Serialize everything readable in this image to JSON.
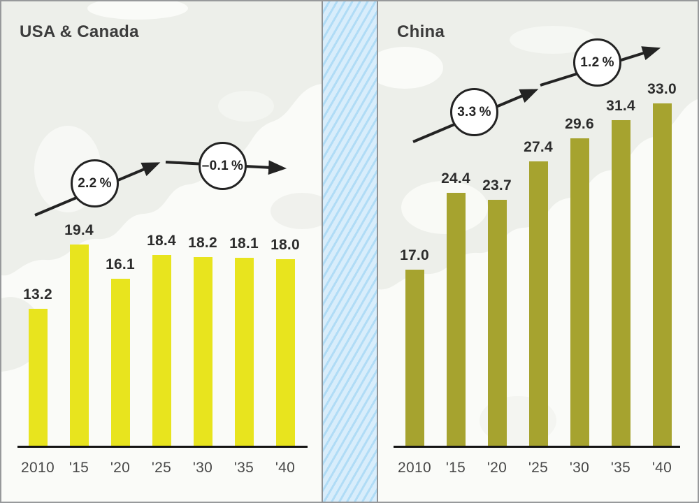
{
  "panels": [
    {
      "title": "USA & Canada",
      "annotations": [
        {
          "text": "2.2 %"
        },
        {
          "text": "–0.1 %"
        }
      ]
    },
    {
      "title": "China",
      "annotations": [
        {
          "text": "3.3 %"
        },
        {
          "text": "1.2 %"
        }
      ]
    }
  ],
  "chart_data": [
    {
      "type": "bar",
      "title": "USA & Canada",
      "categories": [
        "2010",
        "'15",
        "'20",
        "'25",
        "'30",
        "'35",
        "'40"
      ],
      "values": [
        13.2,
        19.4,
        16.1,
        18.4,
        18.2,
        18.1,
        18.0
      ],
      "labels": [
        "13.2",
        "19.4",
        "16.1",
        "18.4",
        "18.2",
        "18.1",
        "18.0"
      ],
      "bar_color": "#e8e41e",
      "xlabel": "",
      "ylabel": "",
      "ylim": [
        0,
        35
      ],
      "grid": false,
      "annotations": [
        {
          "text": "2.2 %",
          "meaning": "growth-rate-early-period"
        },
        {
          "text": "–0.1 %",
          "meaning": "growth-rate-late-period"
        }
      ]
    },
    {
      "type": "bar",
      "title": "China",
      "categories": [
        "2010",
        "'15",
        "'20",
        "'25",
        "'30",
        "'35",
        "'40"
      ],
      "values": [
        17.0,
        24.4,
        23.7,
        27.4,
        29.6,
        31.4,
        33.0
      ],
      "labels": [
        "17.0",
        "24.4",
        "23.7",
        "27.4",
        "29.6",
        "31.4",
        "33.0"
      ],
      "bar_color": "#a6a32f",
      "xlabel": "",
      "ylabel": "",
      "ylim": [
        0,
        35
      ],
      "grid": false,
      "annotations": [
        {
          "text": "3.3 %",
          "meaning": "growth-rate-early-period"
        },
        {
          "text": "1.2 %",
          "meaning": "growth-rate-late-period"
        }
      ]
    }
  ],
  "colors": {
    "usa_canada_bar": "#e8e41e",
    "china_bar": "#a6a32f",
    "arrow": "#232323",
    "axis": "#141414",
    "divider_background": "#d8edfb",
    "divider_stripe": "#b0dcf6",
    "panel_background": "#fafbf8",
    "map_silhouette": "#edefea"
  }
}
